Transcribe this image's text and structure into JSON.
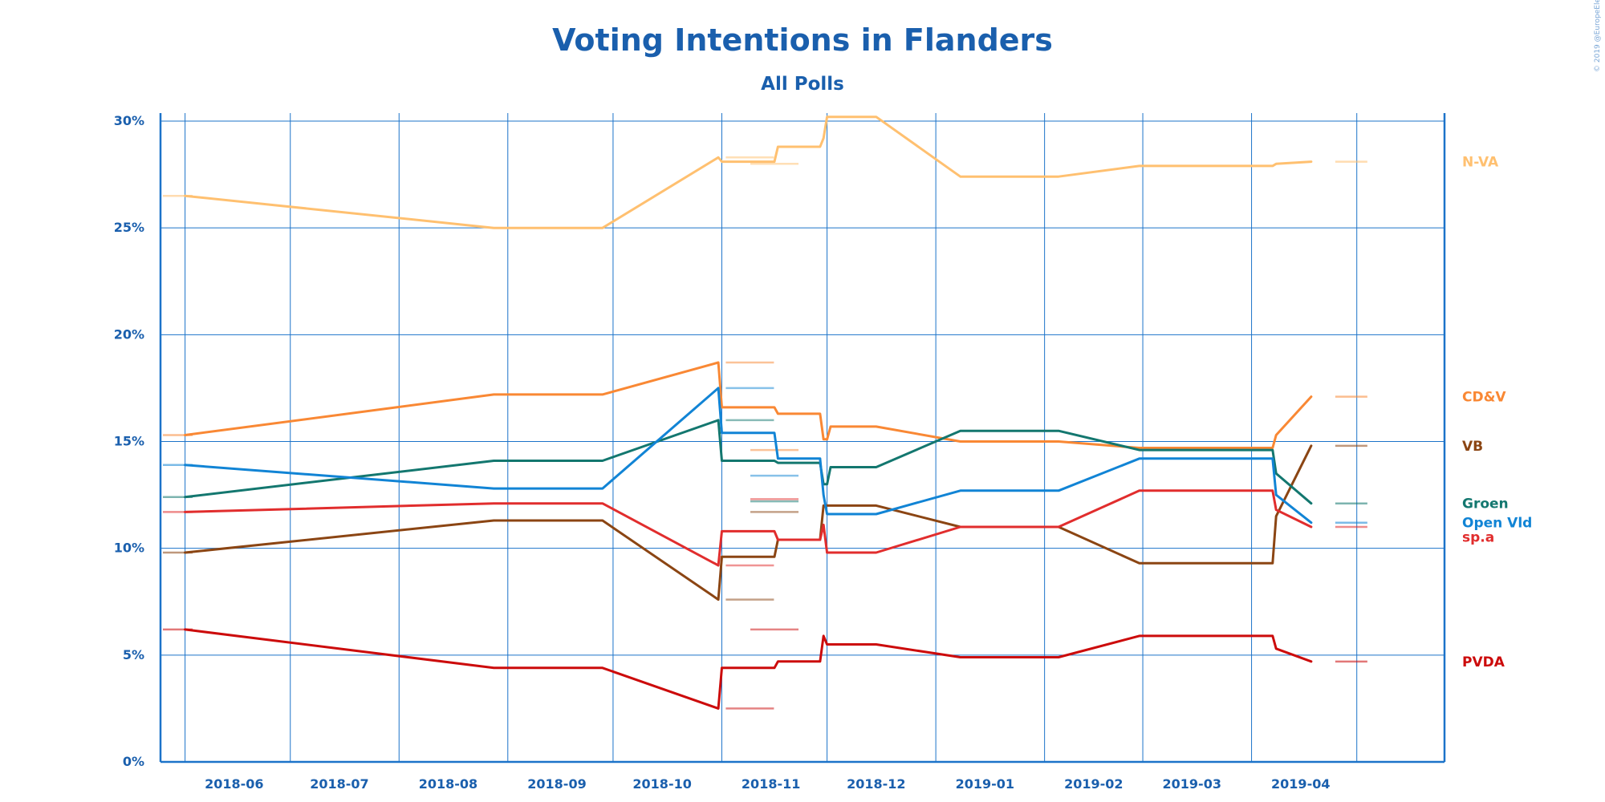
{
  "chart_data": {
    "type": "line",
    "title": "Voting Intentions in Flanders",
    "subtitle": "All Polls",
    "copyright": "© 2019 @EuropeElects",
    "x_tick_labels": [
      "2018-06",
      "2018-07",
      "2018-08",
      "2018-09",
      "2018-10",
      "2018-11",
      "2018-12",
      "2019-01",
      "2019-02",
      "2019-03",
      "2019-04"
    ],
    "y_tick_labels": [
      "0%",
      "5%",
      "10%",
      "15%",
      "20%",
      "25%",
      "30%"
    ],
    "y_ticks": [
      0,
      5,
      10,
      15,
      20,
      25,
      30
    ],
    "ylim": [
      0,
      30.3
    ],
    "x_range": [
      "2018-05-25",
      "2019-05-26"
    ],
    "grid": true,
    "legend_placement": "right",
    "x": [
      "2018-06-01",
      "2018-08-28",
      "2018-09-28",
      "2018-10-31",
      "2018-11-01",
      "2018-11-16",
      "2018-11-17",
      "2018-11-29",
      "2018-11-30",
      "2018-12-01",
      "2018-12-02",
      "2018-12-15",
      "2019-01-08",
      "2019-02-05",
      "2019-02-28",
      "2019-04-07",
      "2019-04-08",
      "2019-04-18"
    ],
    "series": [
      {
        "name": "N-VA",
        "color": "#ffc070",
        "values": [
          26.5,
          25.0,
          25.0,
          28.3,
          28.1,
          28.1,
          28.8,
          28.8,
          29.2,
          30.2,
          30.2,
          30.2,
          27.4,
          27.4,
          27.9,
          27.9,
          28.0,
          28.1
        ],
        "start_value": 26.5,
        "end_value": 28.1,
        "dashes": [
          {
            "date": "2018-11-09",
            "value": 28.3
          },
          {
            "date": "2018-11-16",
            "value": 28.0
          }
        ]
      },
      {
        "name": "CD&V",
        "color": "#f98834",
        "values": [
          15.3,
          17.2,
          17.2,
          18.7,
          16.6,
          16.6,
          16.3,
          16.3,
          15.1,
          15.1,
          15.7,
          15.7,
          15.0,
          15.0,
          14.7,
          14.7,
          15.3,
          17.1
        ],
        "start_value": 15.3,
        "end_value": 17.1,
        "dashes": [
          {
            "date": "2018-11-09",
            "value": 18.7
          },
          {
            "date": "2018-11-16",
            "value": 14.6
          }
        ]
      },
      {
        "name": "VB",
        "color": "#8b4513",
        "values": [
          9.8,
          11.3,
          11.3,
          7.6,
          9.6,
          9.6,
          10.4,
          10.4,
          12.0,
          12.0,
          12.0,
          12.0,
          11.0,
          11.0,
          9.3,
          9.3,
          11.5,
          14.8
        ],
        "start_value": 9.8,
        "end_value": 14.8,
        "dashes": [
          {
            "date": "2018-11-09",
            "value": 7.6
          },
          {
            "date": "2018-11-16",
            "value": 11.7
          }
        ]
      },
      {
        "name": "Groen",
        "color": "#13776f",
        "values": [
          12.4,
          14.1,
          14.1,
          16.0,
          14.1,
          14.1,
          14.0,
          14.0,
          13.0,
          13.0,
          13.8,
          13.8,
          15.5,
          15.5,
          14.6,
          14.6,
          13.5,
          12.1
        ],
        "start_value": 12.4,
        "end_value": 12.1,
        "dashes": [
          {
            "date": "2018-11-09",
            "value": 16.0
          },
          {
            "date": "2018-11-16",
            "value": 12.2
          }
        ]
      },
      {
        "name": "Open Vld",
        "color": "#1184d5",
        "values": [
          13.9,
          12.8,
          12.8,
          17.5,
          15.4,
          15.4,
          14.2,
          14.2,
          12.5,
          11.6,
          11.6,
          11.6,
          12.7,
          12.7,
          14.2,
          14.2,
          12.5,
          11.2
        ],
        "start_value": 13.9,
        "end_value": 11.2,
        "dashes": [
          {
            "date": "2018-11-09",
            "value": 17.5
          },
          {
            "date": "2018-11-16",
            "value": 13.4
          }
        ]
      },
      {
        "name": "sp.a",
        "color": "#e12d2d",
        "values": [
          11.7,
          12.1,
          12.1,
          9.2,
          10.8,
          10.8,
          10.4,
          10.4,
          11.1,
          9.8,
          9.8,
          9.8,
          11.0,
          11.0,
          12.7,
          12.7,
          11.8,
          11.0
        ],
        "start_value": 11.7,
        "end_value": 11.0,
        "dashes": [
          {
            "date": "2018-11-09",
            "value": 9.2
          },
          {
            "date": "2018-11-16",
            "value": 12.3
          }
        ]
      },
      {
        "name": "PVDA",
        "color": "#cc0b0b",
        "values": [
          6.2,
          4.4,
          4.4,
          2.5,
          4.4,
          4.4,
          4.7,
          4.7,
          5.9,
          5.5,
          5.5,
          5.5,
          4.9,
          4.9,
          5.9,
          5.9,
          5.3,
          4.7
        ],
        "start_value": 6.2,
        "end_value": 4.7,
        "dashes": [
          {
            "date": "2018-11-09",
            "value": 2.5
          },
          {
            "date": "2018-11-16",
            "value": 6.2
          }
        ]
      }
    ]
  }
}
